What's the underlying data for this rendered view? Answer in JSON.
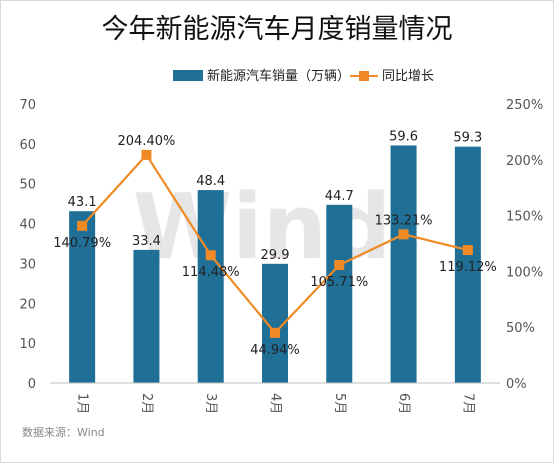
{
  "chart_data": {
    "type": "bar",
    "title": "今年新能源汽车月度销量情况",
    "categories": [
      "1月",
      "2月",
      "3月",
      "4月",
      "5月",
      "6月",
      "7月"
    ],
    "series": [
      {
        "name": "新能源汽车销量（万辆）",
        "type": "bar",
        "axis": "left",
        "values": [
          43.1,
          33.4,
          48.4,
          29.9,
          44.7,
          59.6,
          59.3
        ],
        "labels": [
          "43.1",
          "33.4",
          "48.4",
          "29.9",
          "44.7",
          "59.6",
          "59.3"
        ],
        "color": "#1f6f97"
      },
      {
        "name": "同比增长",
        "type": "line",
        "axis": "right",
        "values": [
          140.79,
          204.4,
          114.48,
          44.94,
          105.71,
          133.21,
          119.12
        ],
        "labels": [
          "140.79%",
          "204.40%",
          "114.48%",
          "44.94%",
          "105.71%",
          "133.21%",
          "119.12%"
        ],
        "color": "#f08a24"
      }
    ],
    "y_left": {
      "min": 0,
      "max": 70,
      "ticks": [
        "0",
        "10",
        "20",
        "30",
        "40",
        "50",
        "60",
        "70"
      ]
    },
    "y_right": {
      "min": 0,
      "max": 250,
      "ticks": [
        "0%",
        "50%",
        "100%",
        "150%",
        "200%",
        "250%"
      ]
    },
    "legend_position": "top",
    "grid": false,
    "watermark": "Wind",
    "source": "数据来源：Wind"
  }
}
